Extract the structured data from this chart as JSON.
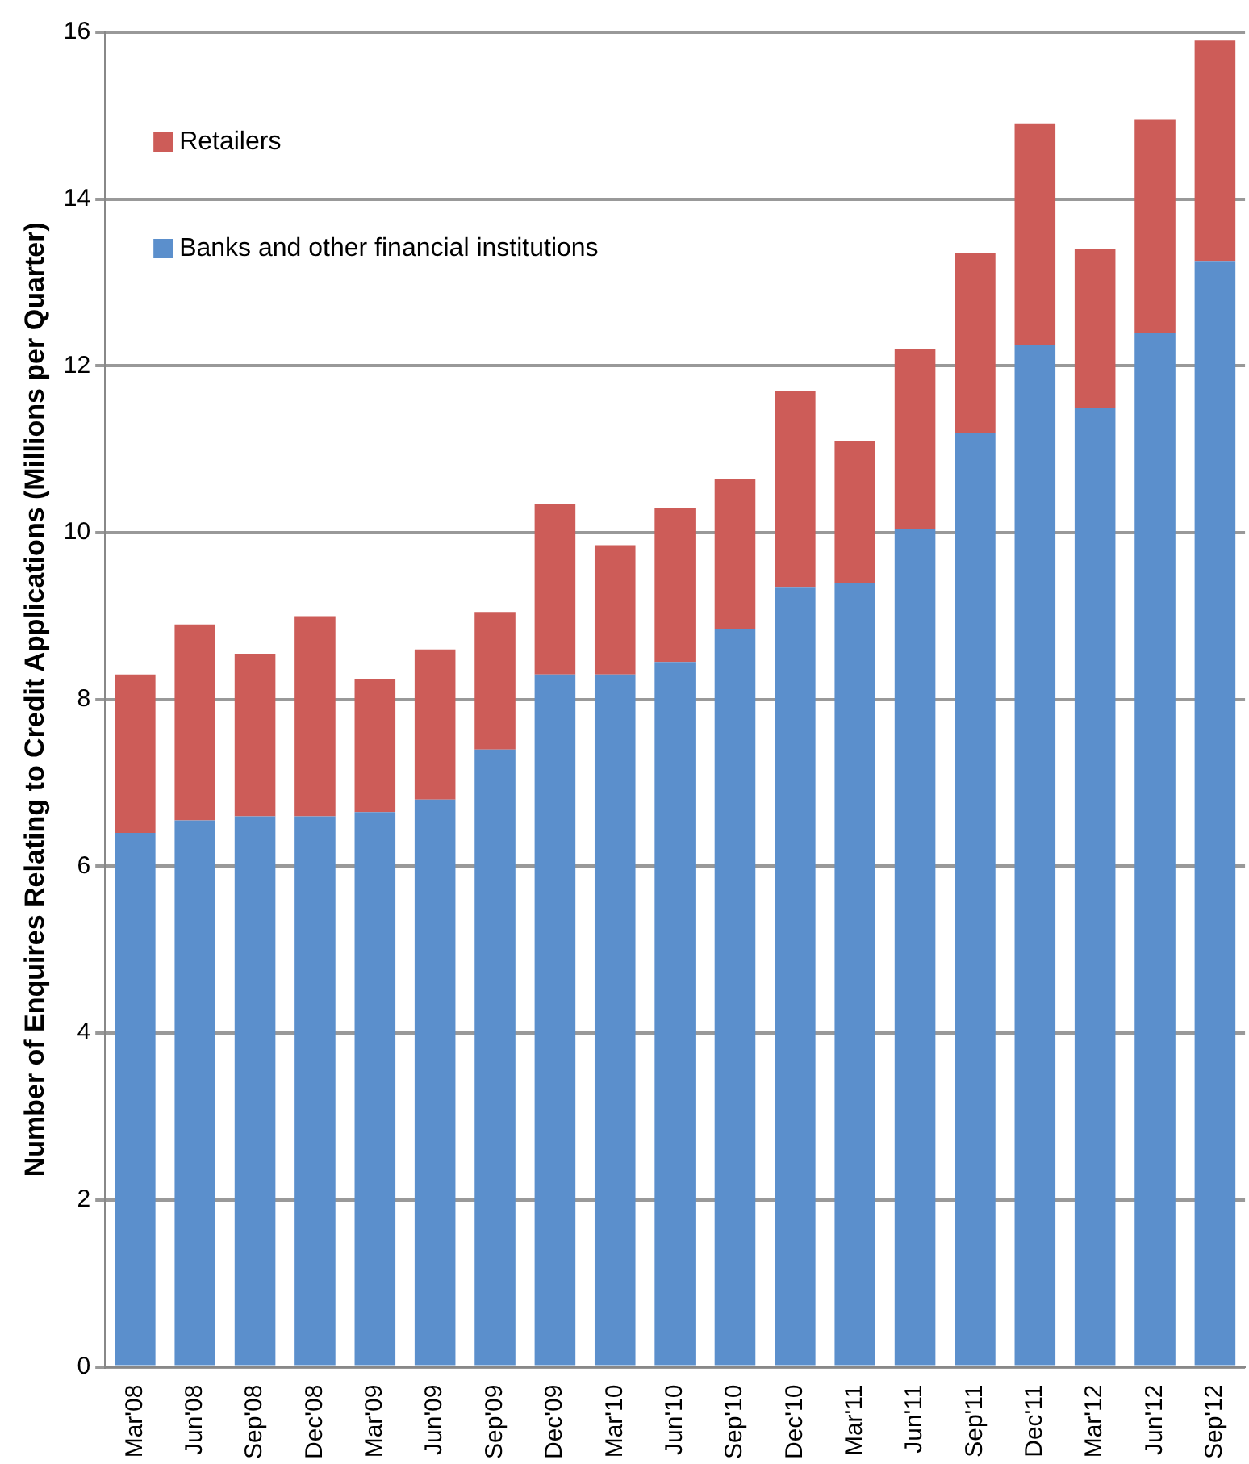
{
  "chart_data": {
    "type": "bar",
    "stacked": true,
    "ylabel": "Number of Enquires Relating to Credit Applications (Millions per Quarter)",
    "categories": [
      "Mar'08",
      "Jun'08",
      "Sep'08",
      "Dec'08",
      "Mar'09",
      "Jun'09",
      "Sep'09",
      "Dec'09",
      "Mar'10",
      "Jun'10",
      "Sep'10",
      "Dec'10",
      "Mar'11",
      "Jun'11",
      "Sep'11",
      "Dec'11",
      "Mar'12",
      "Jun'12",
      "Sep'12"
    ],
    "series": [
      {
        "name": "Banks and other financial institutions",
        "color": "#5b8fcc",
        "values": [
          6.4,
          6.55,
          6.6,
          6.6,
          6.65,
          6.8,
          7.4,
          8.3,
          8.3,
          8.45,
          8.85,
          9.35,
          9.4,
          10.05,
          11.2,
          12.25,
          11.5,
          12.4,
          13.25
        ]
      },
      {
        "name": "Retailers",
        "color": "#cd5c58",
        "values": [
          1.9,
          2.35,
          1.95,
          2.4,
          1.6,
          1.8,
          1.65,
          2.05,
          1.55,
          1.85,
          1.8,
          2.35,
          1.7,
          2.15,
          2.15,
          2.65,
          1.9,
          2.55,
          2.65
        ]
      }
    ],
    "ylim": [
      0,
      16
    ],
    "yticks": [
      0,
      2,
      4,
      6,
      8,
      10,
      12,
      14,
      16
    ],
    "grid": "y",
    "legend": "top left"
  }
}
